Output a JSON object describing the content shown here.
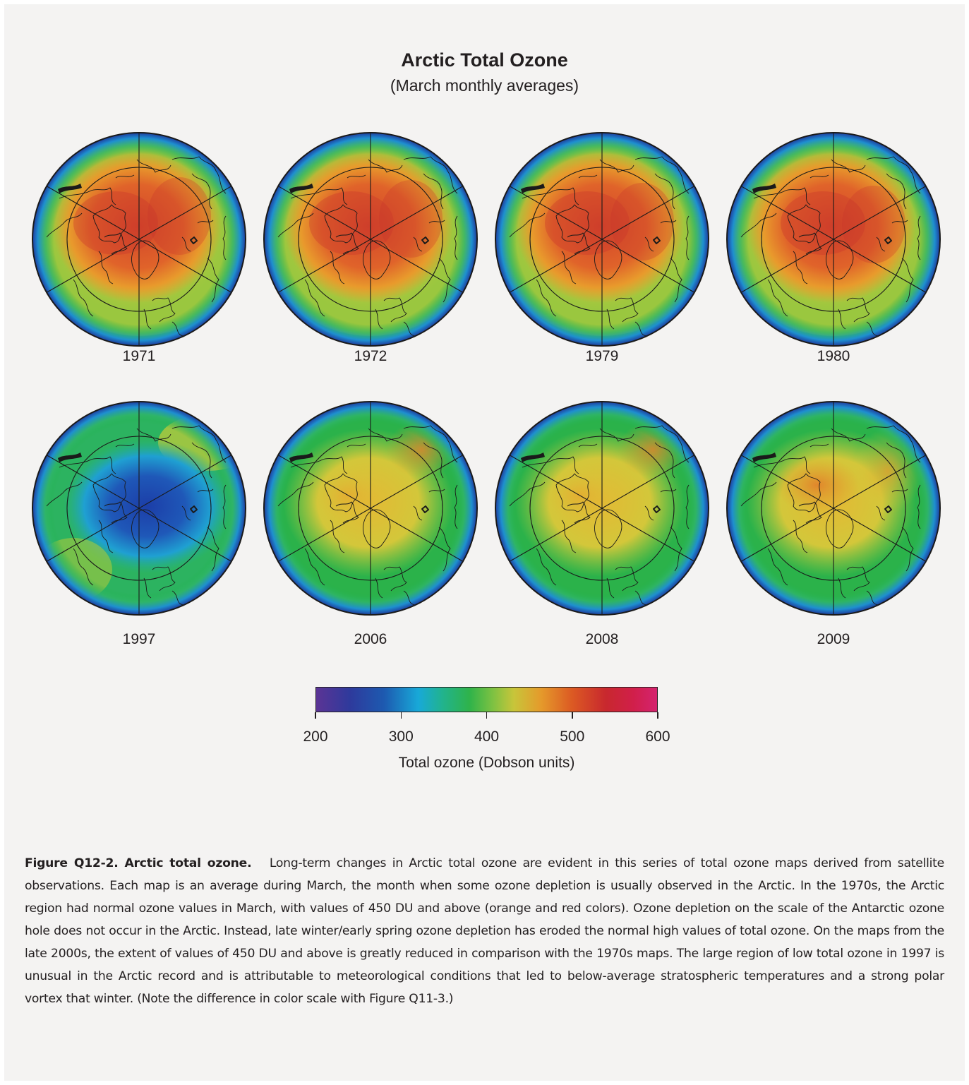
{
  "figure": {
    "title": "Arctic Total Ozone",
    "subtitle": "(March monthly averages)"
  },
  "maps": [
    {
      "year": "1971",
      "pattern": "high-ozone",
      "high_region_color": "orange-red"
    },
    {
      "year": "1972",
      "pattern": "high-ozone",
      "high_region_color": "orange-red"
    },
    {
      "year": "1979",
      "pattern": "high-ozone",
      "high_region_color": "orange-red"
    },
    {
      "year": "1980",
      "pattern": "high-ozone",
      "high_region_color": "orange-red"
    },
    {
      "year": "1997",
      "pattern": "low-ozone-vortex",
      "high_region_color": "blue"
    },
    {
      "year": "2006",
      "pattern": "moderate",
      "high_region_color": "yellow"
    },
    {
      "year": "2008",
      "pattern": "moderate",
      "high_region_color": "yellow"
    },
    {
      "year": "2009",
      "pattern": "moderate",
      "high_region_color": "yellow-orange"
    }
  ],
  "colorbar": {
    "ticks": [
      "200",
      "300",
      "400",
      "500",
      "600"
    ],
    "min": 200,
    "max": 600,
    "label": "Total ozone (Dobson units)"
  },
  "caption": {
    "lead": "Figure Q12-2.  Arctic total ozone.",
    "body": "Long-term changes in Arctic total ozone are evident in this series of total ozone maps derived from satellite observations.  Each map is an average during March, the month when some ozone depletion is usually observed in the Arctic.  In the 1970s, the Arctic region had normal ozone values in March, with values of 450 DU and above (orange and red colors).  Ozone depletion on the scale of the Antarctic ozone hole does not occur in the Arctic.  Instead, late winter/early spring ozone depletion has eroded the normal high values of total ozone.  On the maps from the late 2000s, the extent of values of 450 DU and above is greatly reduced in comparison with the 1970s maps.  The large region of low total ozone in 1997 is unusual in the Arctic record and is attributable to meteorological conditions that led to below-average stratospheric temperatures and a strong polar vortex that winter.  (Note the difference in color scale with Figure Q11-3.)"
  }
}
